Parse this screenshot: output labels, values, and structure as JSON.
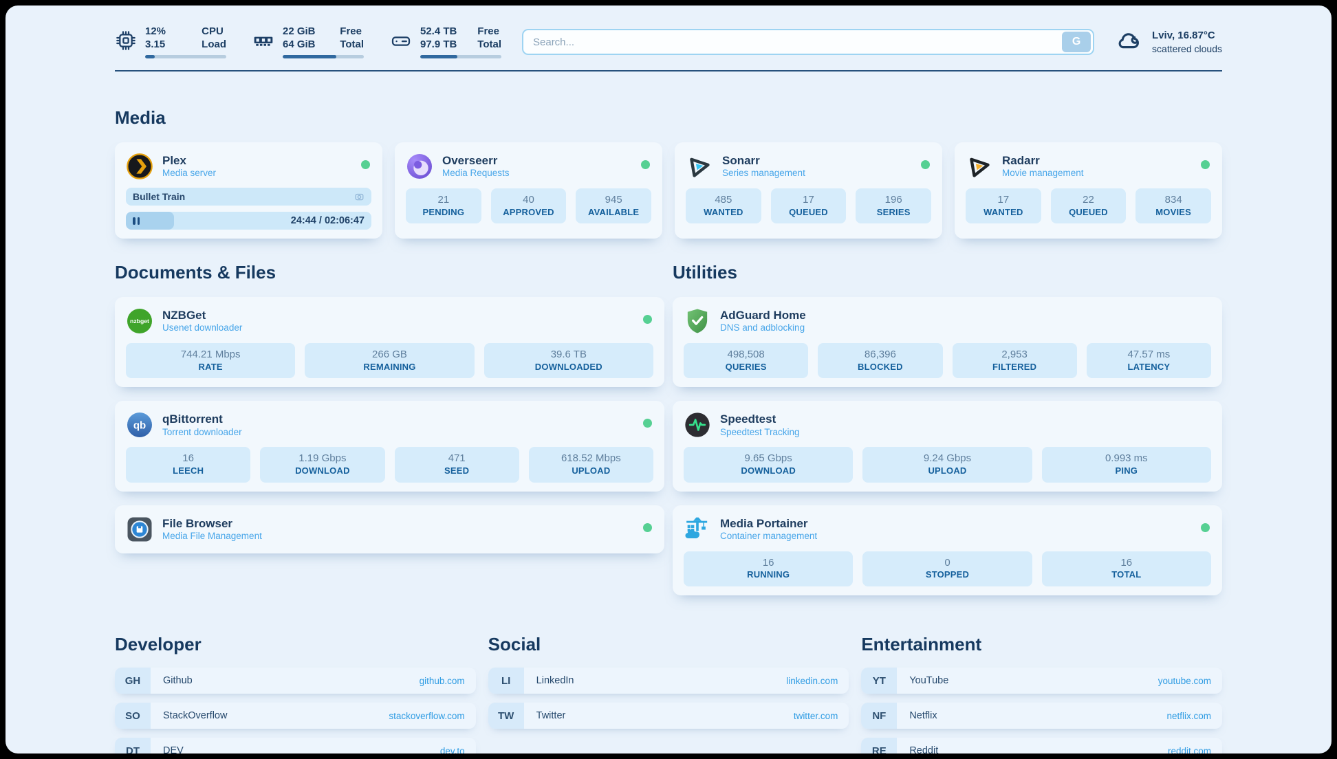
{
  "header": {
    "cpu": {
      "value": "12%",
      "sub": "3.15",
      "label_top": "CPU",
      "label_bottom": "Load",
      "progress_pct": 12
    },
    "ram": {
      "value": "22 GiB",
      "sub": "64 GiB",
      "label_top": "Free",
      "label_bottom": "Total",
      "progress_pct": 66
    },
    "disk": {
      "value": "52.4 TB",
      "sub": "97.9 TB",
      "label_top": "Free",
      "label_bottom": "Total",
      "progress_pct": 46
    },
    "search": {
      "placeholder": "Search...",
      "button_label": "G"
    },
    "weather": {
      "location": "Lviv, 16.87°C",
      "condition": "scattered clouds"
    }
  },
  "sections": {
    "media": {
      "title": "Media"
    },
    "documents": {
      "title": "Documents & Files"
    },
    "utilities": {
      "title": "Utilities"
    },
    "developer": {
      "title": "Developer"
    },
    "social": {
      "title": "Social"
    },
    "entertainment": {
      "title": "Entertainment"
    }
  },
  "apps": {
    "plex": {
      "name": "Plex",
      "desc": "Media server",
      "now_playing": "Bullet Train",
      "time": "24:44 / 02:06:47",
      "progress_pct": 19.5
    },
    "overseerr": {
      "name": "Overseerr",
      "desc": "Media Requests",
      "stats": [
        {
          "value": "21",
          "label": "PENDING"
        },
        {
          "value": "40",
          "label": "APPROVED"
        },
        {
          "value": "945",
          "label": "AVAILABLE"
        }
      ]
    },
    "sonarr": {
      "name": "Sonarr",
      "desc": "Series management",
      "stats": [
        {
          "value": "485",
          "label": "WANTED"
        },
        {
          "value": "17",
          "label": "QUEUED"
        },
        {
          "value": "196",
          "label": "SERIES"
        }
      ]
    },
    "radarr": {
      "name": "Radarr",
      "desc": "Movie management",
      "stats": [
        {
          "value": "17",
          "label": "WANTED"
        },
        {
          "value": "22",
          "label": "QUEUED"
        },
        {
          "value": "834",
          "label": "MOVIES"
        }
      ]
    },
    "nzbget": {
      "name": "NZBGet",
      "desc": "Usenet downloader",
      "icon_text": "nzbget",
      "stats": [
        {
          "value": "744.21 Mbps",
          "label": "RATE"
        },
        {
          "value": "266 GB",
          "label": "REMAINING"
        },
        {
          "value": "39.6 TB",
          "label": "DOWNLOADED"
        }
      ]
    },
    "qbittorrent": {
      "name": "qBittorrent",
      "desc": "Torrent downloader",
      "icon_text": "qb",
      "stats": [
        {
          "value": "16",
          "label": "LEECH"
        },
        {
          "value": "1.19 Gbps",
          "label": "DOWNLOAD"
        },
        {
          "value": "471",
          "label": "SEED"
        },
        {
          "value": "618.52 Mbps",
          "label": "UPLOAD"
        }
      ]
    },
    "filebrowser": {
      "name": "File Browser",
      "desc": "Media File Management"
    },
    "adguard": {
      "name": "AdGuard Home",
      "desc": "DNS and adblocking",
      "stats": [
        {
          "value": "498,508",
          "label": "QUERIES"
        },
        {
          "value": "86,396",
          "label": "BLOCKED"
        },
        {
          "value": "2,953",
          "label": "FILTERED"
        },
        {
          "value": "47.57 ms",
          "label": "LATENCY"
        }
      ]
    },
    "speedtest": {
      "name": "Speedtest",
      "desc": "Speedtest Tracking",
      "stats": [
        {
          "value": "9.65 Gbps",
          "label": "DOWNLOAD"
        },
        {
          "value": "9.24 Gbps",
          "label": "UPLOAD"
        },
        {
          "value": "0.993 ms",
          "label": "PING"
        }
      ]
    },
    "portainer": {
      "name": "Media Portainer",
      "desc": "Container management",
      "stats": [
        {
          "value": "16",
          "label": "RUNNING"
        },
        {
          "value": "0",
          "label": "STOPPED"
        },
        {
          "value": "16",
          "label": "TOTAL"
        }
      ]
    }
  },
  "links": {
    "developer": [
      {
        "abbr": "GH",
        "name": "Github",
        "url": "github.com"
      },
      {
        "abbr": "SO",
        "name": "StackOverflow",
        "url": "stackoverflow.com"
      },
      {
        "abbr": "DT",
        "name": "DEV",
        "url": "dev.to"
      }
    ],
    "social": [
      {
        "abbr": "LI",
        "name": "LinkedIn",
        "url": "linkedin.com"
      },
      {
        "abbr": "TW",
        "name": "Twitter",
        "url": "twitter.com"
      }
    ],
    "entertainment": [
      {
        "abbr": "YT",
        "name": "YouTube",
        "url": "youtube.com"
      },
      {
        "abbr": "NF",
        "name": "Netflix",
        "url": "netflix.com"
      },
      {
        "abbr": "RE",
        "name": "Reddit",
        "url": "reddit.com"
      }
    ]
  },
  "colors": {
    "accent": "#2f9ce3",
    "status_ok": "#56d093",
    "navy": "#1c3e63"
  }
}
